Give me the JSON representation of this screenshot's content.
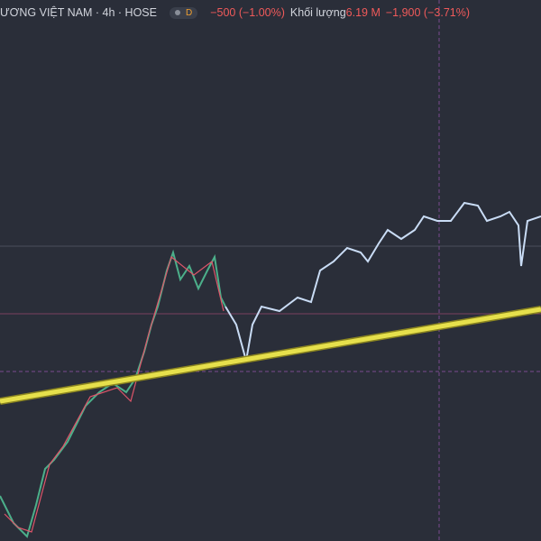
{
  "header": {
    "symbol": "ƯƠNG VIỆT NAM · 4h · HOSE",
    "badge": "D",
    "change": "−500 (−1.00%)",
    "volume_label": "Khối lượng",
    "volume": "6.19 M",
    "volume_change": "−1,900 (−3.71%)"
  }
}
